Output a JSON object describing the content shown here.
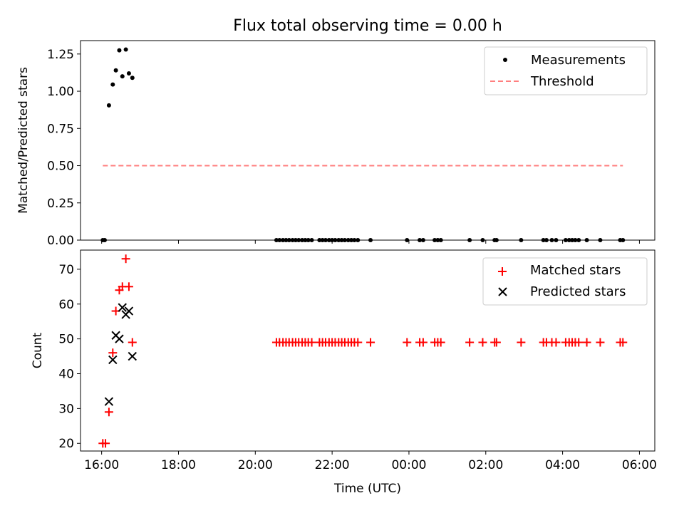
{
  "figure": {
    "title": "Flux total observing time = 0.00 h"
  },
  "colors": {
    "measurements": "#000000",
    "threshold": "#ff7f7f",
    "matched": "#ff0000",
    "predicted": "#000000"
  },
  "chart_data": [
    {
      "type": "scatter",
      "title": "Flux total observing time = 0.00 h",
      "xlabel": "",
      "ylabel": "Matched/Predicted stars",
      "x_unit": "hours since 16:00 UTC",
      "xlim": [
        -0.55,
        14.4
      ],
      "ylim": [
        0.0,
        1.34
      ],
      "yticks": [
        "0.00",
        "0.25",
        "0.50",
        "0.75",
        "1.00",
        "1.25"
      ],
      "ytick_values": [
        0.0,
        0.25,
        0.5,
        0.75,
        1.0,
        1.25
      ],
      "xticks_labels_shown": false,
      "legend": "top-right",
      "grid": false,
      "series": [
        {
          "name": "Measurements",
          "marker": "dot",
          "points": [
            [
              0.03,
              0.0
            ],
            [
              0.08,
              0.0
            ],
            [
              0.19,
              0.905
            ],
            [
              0.29,
              1.045
            ],
            [
              0.37,
              1.14
            ],
            [
              0.46,
              1.275
            ],
            [
              0.54,
              1.1
            ],
            [
              0.63,
              1.28
            ],
            [
              0.71,
              1.12
            ],
            [
              0.8,
              1.09
            ],
            [
              4.55,
              0.0
            ],
            [
              4.63,
              0.0
            ],
            [
              4.72,
              0.0
            ],
            [
              4.8,
              0.0
            ],
            [
              4.88,
              0.0
            ],
            [
              4.97,
              0.0
            ],
            [
              5.05,
              0.0
            ],
            [
              5.13,
              0.0
            ],
            [
              5.22,
              0.0
            ],
            [
              5.3,
              0.0
            ],
            [
              5.38,
              0.0
            ],
            [
              5.47,
              0.0
            ],
            [
              5.67,
              0.0
            ],
            [
              5.75,
              0.0
            ],
            [
              5.83,
              0.0
            ],
            [
              5.92,
              0.0
            ],
            [
              6.0,
              0.0
            ],
            [
              6.08,
              0.0
            ],
            [
              6.17,
              0.0
            ],
            [
              6.25,
              0.0
            ],
            [
              6.33,
              0.0
            ],
            [
              6.42,
              0.0
            ],
            [
              6.5,
              0.0
            ],
            [
              6.58,
              0.0
            ],
            [
              6.67,
              0.0
            ],
            [
              7.0,
              0.0
            ],
            [
              7.95,
              0.0
            ],
            [
              8.28,
              0.0
            ],
            [
              8.37,
              0.0
            ],
            [
              8.67,
              0.0
            ],
            [
              8.75,
              0.0
            ],
            [
              8.83,
              0.0
            ],
            [
              9.58,
              0.0
            ],
            [
              9.92,
              0.0
            ],
            [
              10.23,
              0.0
            ],
            [
              10.28,
              0.0
            ],
            [
              10.92,
              0.0
            ],
            [
              11.5,
              0.0
            ],
            [
              11.58,
              0.0
            ],
            [
              11.72,
              0.0
            ],
            [
              11.83,
              0.0
            ],
            [
              12.08,
              0.0
            ],
            [
              12.17,
              0.0
            ],
            [
              12.25,
              0.0
            ],
            [
              12.33,
              0.0
            ],
            [
              12.42,
              0.0
            ],
            [
              12.63,
              0.0
            ],
            [
              12.98,
              0.0
            ],
            [
              13.5,
              0.0
            ],
            [
              13.57,
              0.0
            ]
          ]
        },
        {
          "name": "Threshold",
          "line": "dashed",
          "points": [
            [
              0.03,
              0.5
            ],
            [
              13.57,
              0.5
            ]
          ]
        }
      ]
    },
    {
      "type": "scatter",
      "title": "",
      "xlabel": "Time (UTC)",
      "ylabel": "Count",
      "x_unit": "hours since 16:00 UTC",
      "xlim": [
        -0.55,
        14.4
      ],
      "ylim": [
        17.8,
        75.5
      ],
      "yticks": [
        "20",
        "30",
        "40",
        "50",
        "60",
        "70"
      ],
      "ytick_values": [
        20,
        30,
        40,
        50,
        60,
        70
      ],
      "xticks": [
        "16:00",
        "18:00",
        "20:00",
        "22:00",
        "00:00",
        "02:00",
        "04:00",
        "06:00"
      ],
      "xtick_values": [
        0,
        2,
        4,
        6,
        8,
        10,
        12,
        14
      ],
      "legend": "top-right",
      "grid": false,
      "series": [
        {
          "name": "Matched stars",
          "marker": "plus",
          "points": [
            [
              0.03,
              20
            ],
            [
              0.1,
              20
            ],
            [
              0.19,
              29
            ],
            [
              0.29,
              46
            ],
            [
              0.37,
              58
            ],
            [
              0.46,
              64
            ],
            [
              0.54,
              65
            ],
            [
              0.63,
              73
            ],
            [
              0.71,
              65
            ],
            [
              0.8,
              49
            ],
            [
              4.55,
              49
            ],
            [
              4.63,
              49
            ],
            [
              4.72,
              49
            ],
            [
              4.8,
              49
            ],
            [
              4.88,
              49
            ],
            [
              4.97,
              49
            ],
            [
              5.05,
              49
            ],
            [
              5.13,
              49
            ],
            [
              5.22,
              49
            ],
            [
              5.3,
              49
            ],
            [
              5.38,
              49
            ],
            [
              5.47,
              49
            ],
            [
              5.67,
              49
            ],
            [
              5.75,
              49
            ],
            [
              5.83,
              49
            ],
            [
              5.92,
              49
            ],
            [
              6.0,
              49
            ],
            [
              6.08,
              49
            ],
            [
              6.17,
              49
            ],
            [
              6.25,
              49
            ],
            [
              6.33,
              49
            ],
            [
              6.42,
              49
            ],
            [
              6.5,
              49
            ],
            [
              6.58,
              49
            ],
            [
              6.67,
              49
            ],
            [
              7.0,
              49
            ],
            [
              7.95,
              49
            ],
            [
              8.28,
              49
            ],
            [
              8.37,
              49
            ],
            [
              8.67,
              49
            ],
            [
              8.75,
              49
            ],
            [
              8.83,
              49
            ],
            [
              9.58,
              49
            ],
            [
              9.92,
              49
            ],
            [
              10.23,
              49
            ],
            [
              10.28,
              49
            ],
            [
              10.92,
              49
            ],
            [
              11.5,
              49
            ],
            [
              11.58,
              49
            ],
            [
              11.72,
              49
            ],
            [
              11.83,
              49
            ],
            [
              12.08,
              49
            ],
            [
              12.17,
              49
            ],
            [
              12.25,
              49
            ],
            [
              12.33,
              49
            ],
            [
              12.42,
              49
            ],
            [
              12.63,
              49
            ],
            [
              12.98,
              49
            ],
            [
              13.5,
              49
            ],
            [
              13.57,
              49
            ]
          ]
        },
        {
          "name": "Predicted stars",
          "marker": "x",
          "points": [
            [
              0.19,
              32
            ],
            [
              0.29,
              44
            ],
            [
              0.37,
              51
            ],
            [
              0.46,
              50
            ],
            [
              0.54,
              59
            ],
            [
              0.63,
              57
            ],
            [
              0.71,
              58
            ],
            [
              0.8,
              45
            ]
          ]
        }
      ]
    }
  ]
}
